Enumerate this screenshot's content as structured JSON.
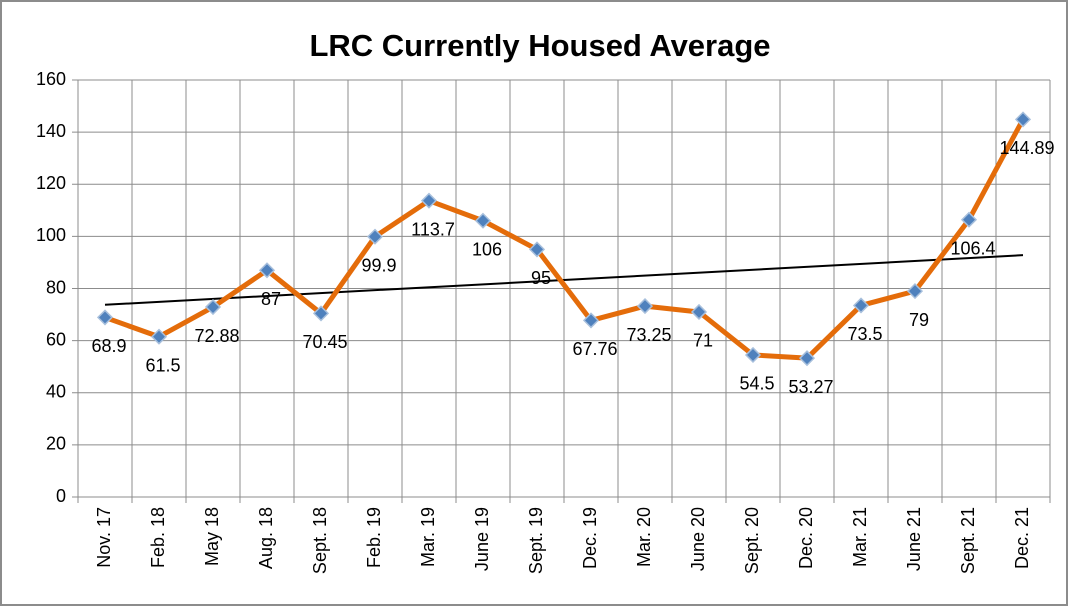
{
  "chart_data": {
    "type": "line",
    "title": "LRC Currently Housed Average",
    "categories": [
      "Nov. 17",
      "Feb. 18",
      "May 18",
      "Aug. 18",
      "Sept. 18",
      "Feb. 19",
      "Mar. 19",
      "June 19",
      "Sept. 19",
      "Dec. 19",
      "Mar. 20",
      "June 20",
      "Sept. 20",
      "Dec. 20",
      "Mar. 21",
      "June 21",
      "Sept. 21",
      "Dec. 21"
    ],
    "series": [
      {
        "name": "LRC Currently Housed Average",
        "color": "#e46c0a",
        "marker_color": "#4f81bd",
        "values": [
          68.9,
          61.5,
          72.88,
          87,
          70.45,
          99.9,
          113.7,
          106,
          95,
          67.76,
          73.25,
          71,
          54.5,
          53.27,
          73.5,
          79,
          106.4,
          144.89
        ]
      }
    ],
    "ylim": [
      0,
      160
    ],
    "yticks": [
      0,
      20,
      40,
      60,
      80,
      100,
      120,
      140,
      160
    ],
    "grid": true,
    "trendline": true,
    "trendline_color": "#000000",
    "data_labels": true
  }
}
